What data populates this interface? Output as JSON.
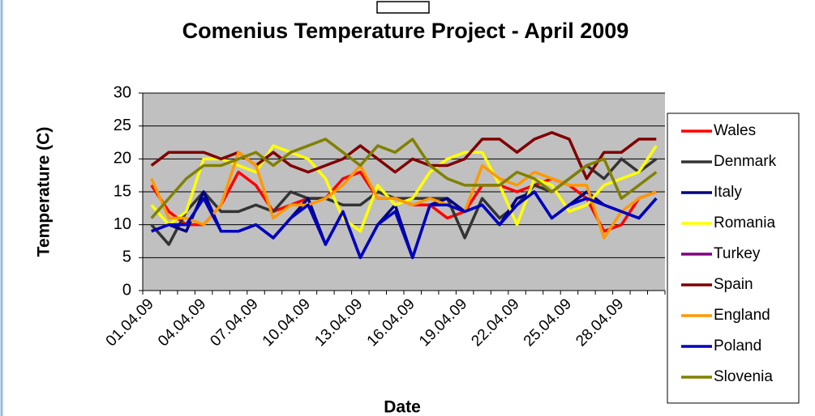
{
  "chart_data": {
    "type": "line",
    "title": "Comenius Temperature Project - April 2009",
    "x_label": "Date",
    "y_label": "Temperature (C)",
    "categories": [
      "01.04.09",
      null,
      null,
      "04.04.09",
      null,
      null,
      "07.04.09",
      null,
      null,
      "10.04.09",
      null,
      null,
      "13.04.09",
      null,
      null,
      "16.04.09",
      null,
      null,
      "19.04.09",
      null,
      null,
      "22.04.09",
      null,
      null,
      "25.04.09",
      null,
      null,
      "28.04.09",
      null,
      null
    ],
    "ylim": [
      0,
      30
    ],
    "yticks": [
      0,
      5,
      10,
      15,
      20,
      25,
      30
    ],
    "grid": true,
    "legend": "right",
    "series": [
      {
        "name": "Wales",
        "color": "#ff0000",
        "values": [
          16,
          12,
          10,
          10,
          13,
          18,
          16,
          12,
          13,
          14,
          14,
          17,
          18,
          14,
          14,
          13,
          13,
          11,
          12,
          16,
          16,
          15,
          16,
          17,
          16,
          14,
          9,
          10,
          14,
          15
        ]
      },
      {
        "name": "Denmark",
        "color": "#333333",
        "values": [
          10,
          7,
          12,
          15,
          12,
          12,
          13,
          12,
          15,
          14,
          14,
          13,
          13,
          15,
          14,
          14,
          14,
          14,
          8,
          14,
          11,
          13,
          16,
          15,
          17,
          19,
          17,
          20,
          18,
          20
        ]
      },
      {
        "name": "Italy",
        "color": "#000080",
        "values": [
          9,
          10,
          9,
          15,
          9,
          9,
          10,
          8,
          11,
          14,
          7,
          12,
          5,
          10,
          13,
          5,
          13,
          14,
          12,
          13,
          10,
          14,
          15,
          11,
          13,
          15,
          13,
          12,
          11,
          14
        ]
      },
      {
        "name": "Romania",
        "color": "#ffff00",
        "values": [
          13,
          10,
          12,
          20,
          20,
          19,
          18,
          22,
          21,
          20,
          17,
          11,
          9,
          16,
          13,
          14,
          18,
          20,
          21,
          21,
          16,
          10,
          17,
          16,
          12,
          13,
          16,
          17,
          18,
          22
        ]
      },
      {
        "name": "Turkey",
        "color": "#800080",
        "values": [
          null,
          null,
          null,
          null,
          null,
          null,
          null,
          null,
          null,
          null,
          null,
          null,
          null,
          null,
          null,
          null,
          null,
          null,
          null,
          null,
          null,
          null,
          null,
          null,
          null,
          null,
          null,
          null,
          null,
          null
        ]
      },
      {
        "name": "Spain",
        "color": "#800000",
        "values": [
          19,
          21,
          21,
          21,
          20,
          21,
          19,
          21,
          19,
          18,
          19,
          20,
          22,
          20,
          18,
          20,
          19,
          19,
          20,
          23,
          23,
          21,
          23,
          24,
          23,
          17,
          21,
          21,
          23,
          23
        ]
      },
      {
        "name": "England",
        "color": "#ff9900",
        "values": [
          17,
          11,
          11,
          10,
          13,
          21,
          19,
          11,
          13,
          13,
          14,
          16,
          19,
          14,
          14,
          13,
          14,
          13,
          12,
          19,
          17,
          16,
          18,
          17,
          16,
          16,
          8,
          12,
          14,
          15
        ]
      },
      {
        "name": "Poland",
        "color": "#0000c0",
        "values": [
          9,
          10,
          10,
          14,
          9,
          9,
          10,
          8,
          11,
          13,
          7,
          12,
          5,
          10,
          12,
          5,
          13,
          13,
          12,
          13,
          10,
          13,
          15,
          11,
          13,
          14,
          13,
          12,
          11,
          14
        ]
      },
      {
        "name": "Slovenia",
        "color": "#808000",
        "values": [
          11,
          14,
          17,
          19,
          19,
          20,
          21,
          19,
          21,
          22,
          23,
          21,
          19,
          22,
          21,
          23,
          19,
          17,
          16,
          16,
          16,
          18,
          17,
          15,
          17,
          19,
          20,
          14,
          16,
          18
        ]
      }
    ]
  }
}
